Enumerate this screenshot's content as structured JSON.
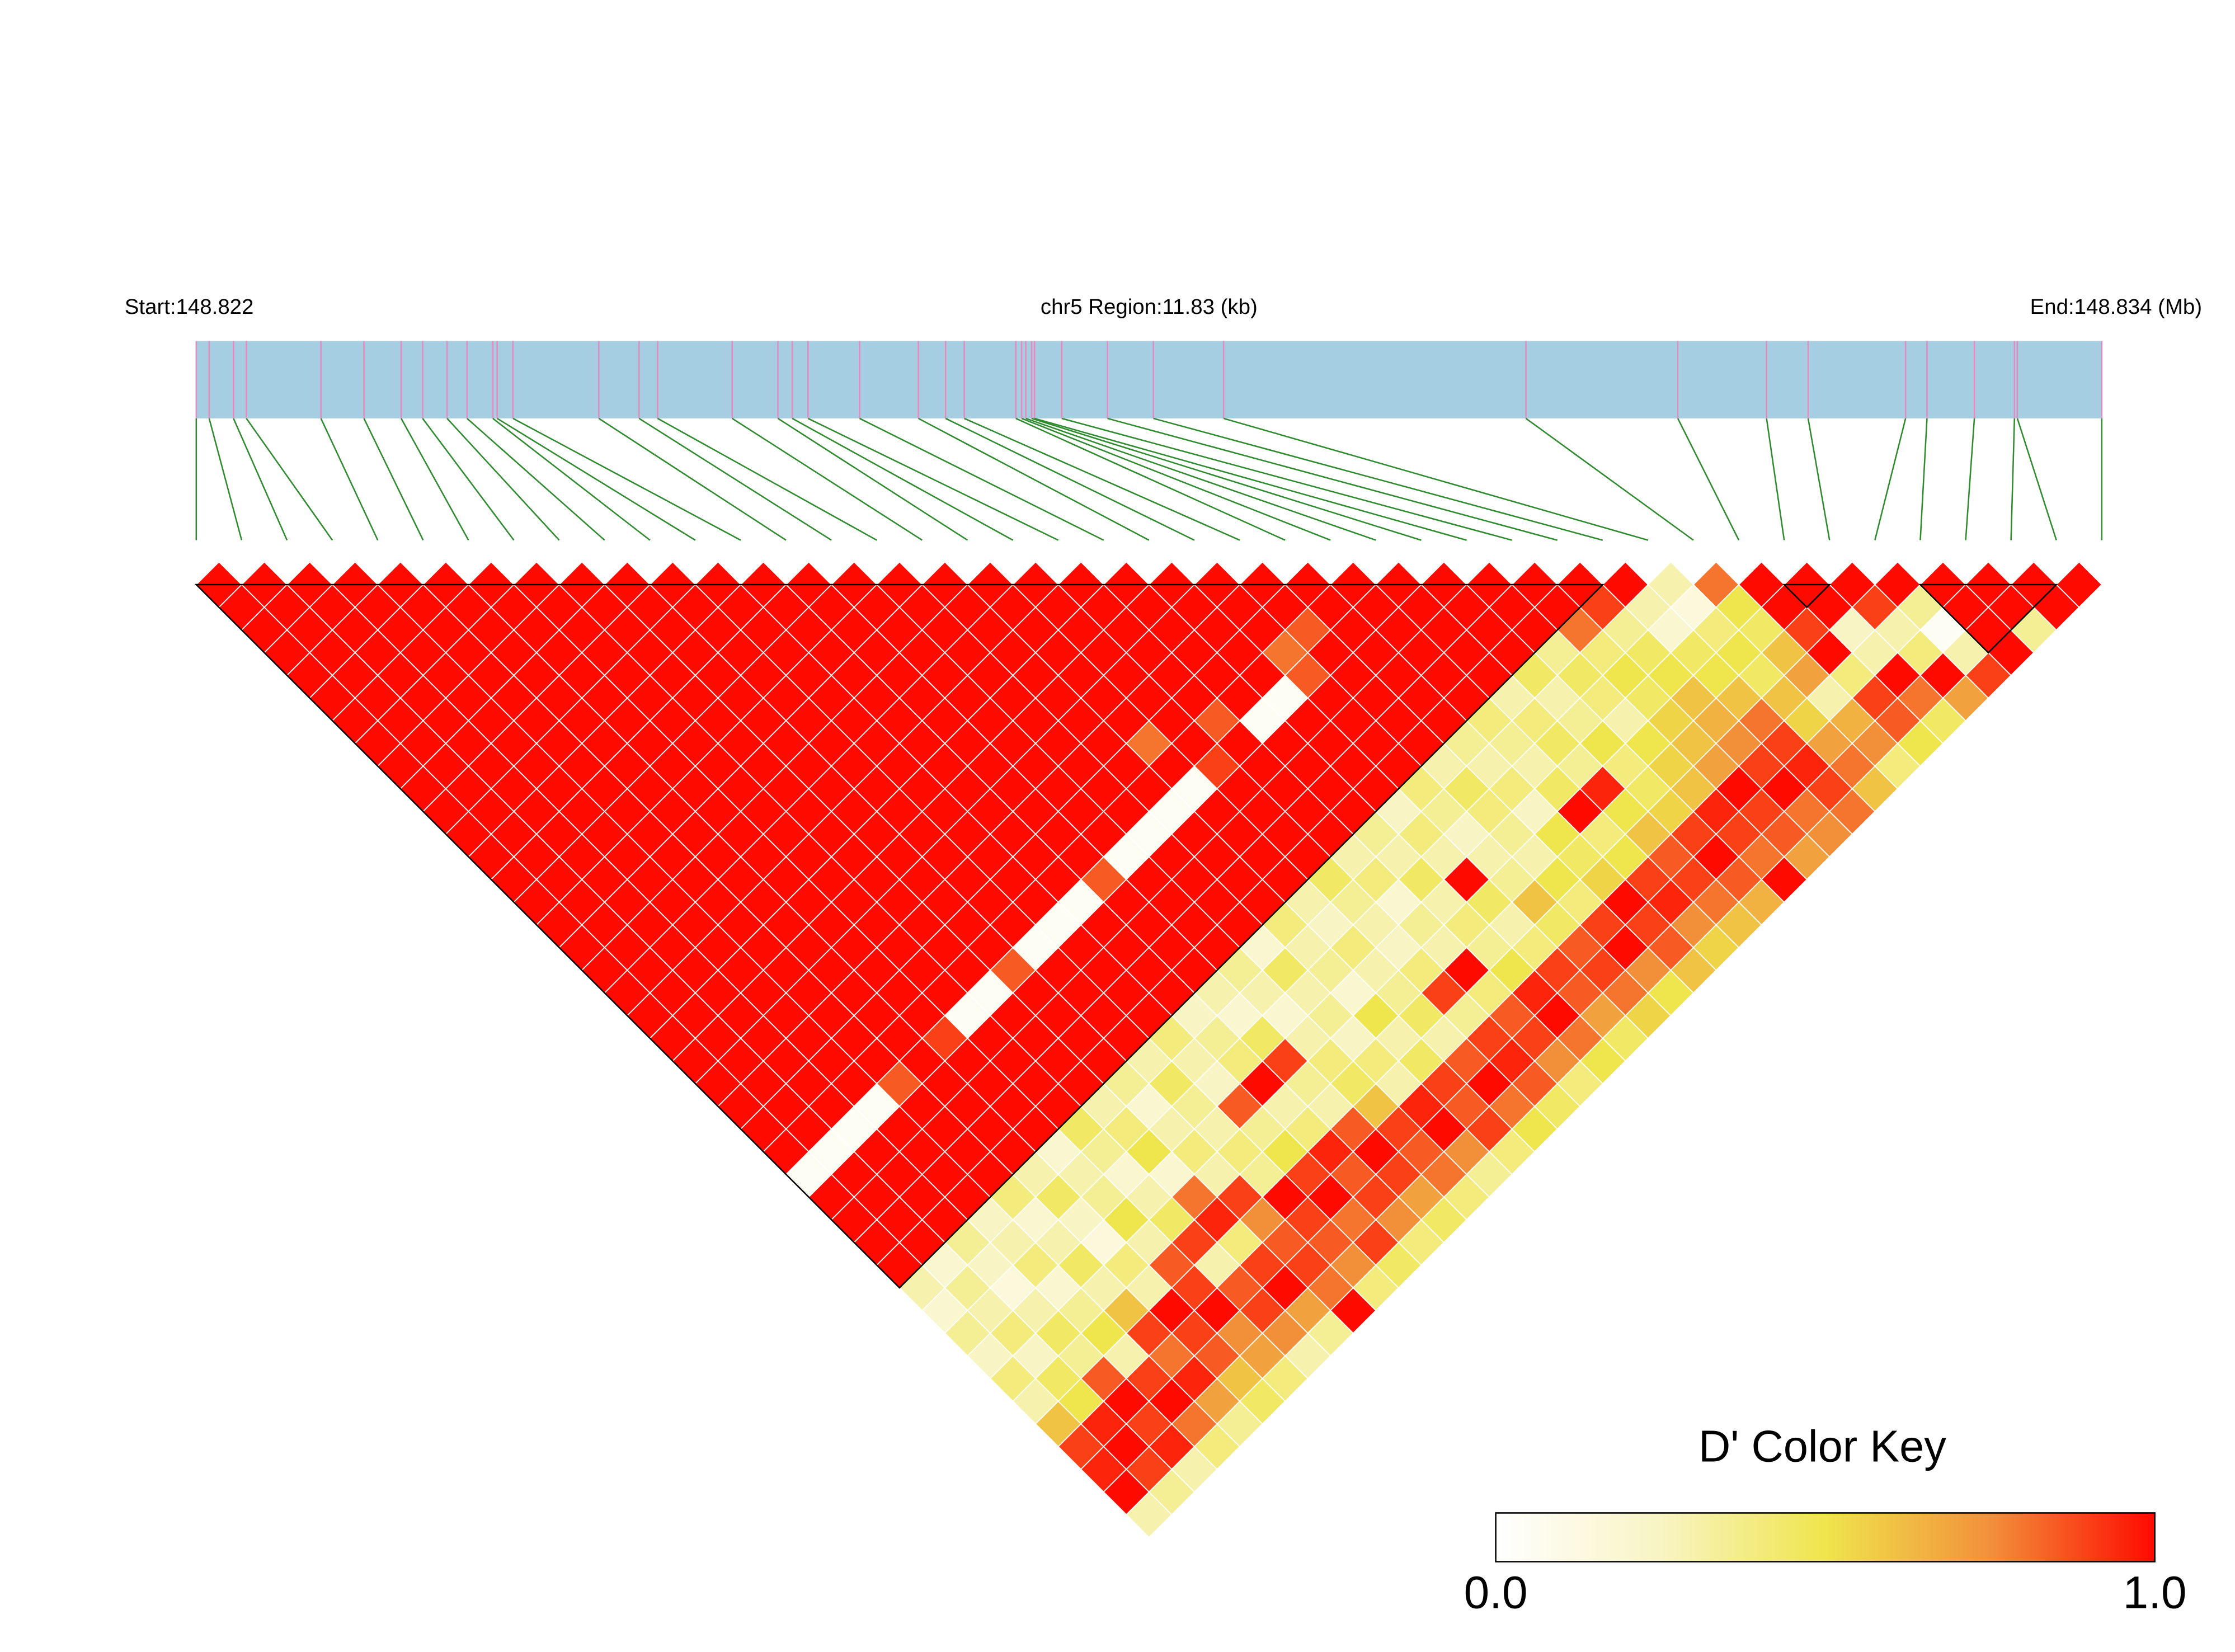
{
  "chart_data": {
    "type": "ld_heatmap",
    "start_label": "Start:148.822",
    "region_label": "chr5 Region:11.83 (kb)",
    "end_label": "End:148.834 (Mb)",
    "xlim": [
      0,
      11.83
    ],
    "snp_positions": [
      0,
      0.08,
      0.231,
      0.311,
      0.774,
      1.041,
      1.272,
      1.405,
      1.557,
      1.681,
      1.841,
      1.868,
      1.966,
      2.499,
      2.749,
      2.864,
      3.327,
      3.611,
      3.7,
      3.798,
      4.118,
      4.483,
      4.652,
      4.768,
      5.088,
      5.124,
      5.15,
      5.186,
      5.204,
      5.373,
      5.657,
      5.942,
      6.378,
      8.255,
      9.198,
      9.749,
      10.007,
      10.612,
      10.745,
      11.039,
      11.288,
      11.306,
      11.83
    ],
    "dprime": [
      [
        1,
        1,
        1,
        1,
        1,
        1,
        1,
        1,
        1,
        1,
        1,
        1,
        1,
        1,
        1,
        1,
        1,
        1,
        1,
        1,
        1,
        1,
        1,
        1,
        1,
        1,
        0.05,
        1,
        1,
        1,
        1,
        0.3,
        0.2,
        0.35,
        0.25,
        0.4,
        0.3,
        0.6,
        0.9,
        0.95,
        1,
        0.3
      ],
      [
        1,
        1,
        1,
        1,
        1,
        1,
        1,
        1,
        1,
        1,
        1,
        1,
        1,
        1,
        1,
        1,
        1,
        1,
        1,
        1,
        1,
        1,
        1,
        1,
        1,
        0.05,
        1,
        1,
        1,
        1,
        0.2,
        0.35,
        0.3,
        0.4,
        0.25,
        0.45,
        0.5,
        0.95,
        1,
        0.9,
        0.35
      ],
      [
        1,
        1,
        1,
        1,
        1,
        1,
        1,
        1,
        1,
        1,
        1,
        1,
        1,
        1,
        1,
        1,
        1,
        1,
        1,
        1,
        1,
        1,
        1,
        1,
        0.05,
        1,
        1,
        1,
        1,
        0.35,
        0.25,
        0.15,
        0.3,
        0.45,
        0.35,
        0.85,
        1,
        0.9,
        0.95,
        0.3
      ],
      [
        1,
        1,
        1,
        1,
        1,
        1,
        1,
        1,
        1,
        1,
        1,
        1,
        1,
        1,
        1,
        1,
        1,
        1,
        1,
        1,
        1,
        1,
        1,
        0.05,
        1,
        1,
        1,
        1,
        0.25,
        0.3,
        0.4,
        0.2,
        0.35,
        0.5,
        0.3,
        0.9,
        1,
        0.8,
        0.4
      ],
      [
        1,
        1,
        1,
        1,
        1,
        1,
        1,
        1,
        1,
        1,
        1,
        1,
        1,
        1,
        1,
        1,
        1,
        1,
        1,
        1,
        1,
        1,
        0.85,
        1,
        1,
        1,
        1,
        0.4,
        0.2,
        0.3,
        0.45,
        0.3,
        0.6,
        0.9,
        0.8,
        0.95,
        0.7,
        0.35
      ],
      [
        1,
        1,
        1,
        1,
        1,
        1,
        1,
        1,
        1,
        1,
        1,
        1,
        1,
        1,
        1,
        1,
        1,
        1,
        1,
        1,
        1,
        1,
        1,
        1,
        1,
        1,
        0.3,
        0.45,
        0.25,
        0.15,
        0.4,
        0.3,
        1,
        0.9,
        0.85,
        0.6,
        0.45
      ],
      [
        1,
        1,
        1,
        1,
        1,
        1,
        1,
        1,
        1,
        1,
        1,
        1,
        1,
        1,
        1,
        1,
        1,
        1,
        1,
        1,
        0.9,
        1,
        1,
        1,
        1,
        0.2,
        0.3,
        0.35,
        0.5,
        0.3,
        0.85,
        0.9,
        1,
        0.75,
        0.7,
        0.4
      ],
      [
        1,
        1,
        1,
        1,
        1,
        1,
        1,
        1,
        1,
        1,
        1,
        1,
        1,
        1,
        1,
        1,
        1,
        1,
        1,
        0.05,
        1,
        1,
        1,
        1,
        0.45,
        0.35,
        0.2,
        0.3,
        0.45,
        0.9,
        0.3,
        0.85,
        0.9,
        0.75,
        0.3
      ],
      [
        1,
        1,
        1,
        1,
        1,
        1,
        1,
        1,
        1,
        1,
        1,
        1,
        1,
        1,
        1,
        1,
        1,
        1,
        0.05,
        1,
        1,
        1,
        1,
        0.3,
        0.4,
        0.5,
        0.2,
        0.8,
        0.95,
        0.4,
        0.9,
        1,
        0.7,
        0.35
      ],
      [
        1,
        1,
        1,
        1,
        1,
        1,
        1,
        1,
        1,
        1,
        1,
        1,
        1,
        1,
        1,
        1,
        1,
        0.85,
        1,
        1,
        1,
        1,
        0.35,
        0.2,
        0.3,
        0.4,
        0.3,
        0.9,
        0.75,
        0.85,
        0.9,
        0.8,
        1
      ],
      [
        1,
        1,
        1,
        1,
        1,
        1,
        1,
        1,
        1,
        1,
        1,
        1,
        1,
        1,
        1,
        1,
        0.05,
        1,
        1,
        1,
        1,
        0.3,
        0.45,
        0.35,
        0.3,
        0.4,
        0.35,
        1,
        0.9,
        0.85,
        0.75,
        0.4
      ],
      [
        1,
        1,
        1,
        1,
        1,
        1,
        1,
        1,
        1,
        1,
        1,
        1,
        1,
        1,
        1,
        0.05,
        1,
        1,
        1,
        1,
        0.4,
        0.3,
        0.25,
        0.85,
        0.35,
        0.5,
        0.9,
        1,
        0.8,
        0.9,
        0.45
      ],
      [
        1,
        1,
        1,
        1,
        1,
        1,
        1,
        1,
        1,
        1,
        1,
        1,
        1,
        1,
        0.05,
        1,
        1,
        1,
        1,
        0.25,
        0.35,
        0.4,
        1,
        0.3,
        0.4,
        0.95,
        0.85,
        0.9,
        0.75,
        0.4
      ],
      [
        1,
        1,
        1,
        1,
        1,
        1,
        1,
        1,
        1,
        1,
        1,
        1,
        1,
        0.85,
        1,
        1,
        1,
        1,
        0.3,
        0.2,
        0.45,
        0.9,
        0.35,
        0.3,
        0.85,
        1,
        0.9,
        0.7,
        0.45
      ],
      [
        1,
        1,
        1,
        1,
        1,
        1,
        1,
        1,
        1,
        1,
        1,
        1,
        0.05,
        1,
        1,
        1,
        1,
        0.35,
        0.3,
        0.2,
        0.3,
        0.4,
        0.45,
        0.6,
        0.9,
        0.85,
        0.8,
        0.4
      ],
      [
        1,
        1,
        1,
        1,
        1,
        1,
        1,
        1,
        1,
        1,
        1,
        0.05,
        1,
        1,
        1,
        1,
        0.2,
        0.45,
        0.3,
        0.35,
        0.25,
        0.4,
        0.3,
        0.95,
        1,
        0.75,
        0.35
      ],
      [
        1,
        1,
        1,
        1,
        1,
        1,
        1,
        1,
        1,
        1,
        0.05,
        1,
        1,
        1,
        1,
        0.4,
        0.3,
        0.35,
        0.2,
        0.5,
        0.3,
        0.45,
        0.9,
        0.85,
        0.9,
        0.4
      ],
      [
        1,
        1,
        1,
        1,
        1,
        1,
        1,
        0.8,
        1,
        0.05,
        1,
        1,
        1,
        1,
        0.3,
        0.25,
        0.4,
        0.3,
        0.35,
        0.45,
        0.3,
        0.85,
        1,
        0.8,
        0.5
      ],
      [
        1,
        1,
        1,
        1,
        1,
        1,
        1,
        1,
        0.9,
        1,
        1,
        1,
        1,
        0.45,
        0.35,
        0.3,
        0.25,
        0.4,
        0.9,
        0.35,
        0.9,
        0.95,
        0.85,
        0.45
      ],
      [
        1,
        1,
        1,
        1,
        1,
        1,
        0.85,
        1,
        1,
        1,
        1,
        1,
        0.3,
        0.4,
        0.2,
        0.35,
        0.3,
        1,
        0.4,
        0.85,
        0.9,
        0.75,
        0.4
      ],
      [
        1,
        1,
        1,
        1,
        1,
        1,
        0.05,
        1,
        1,
        1,
        1,
        0.35,
        0.3,
        0.45,
        0.3,
        0.4,
        0.35,
        0.5,
        0.95,
        1,
        0.8,
        0.5
      ],
      [
        1,
        1,
        1,
        1,
        1,
        0.05,
        1,
        1,
        1,
        1,
        0.25,
        0.4,
        0.3,
        1,
        0.45,
        0.3,
        0.4,
        0.9,
        0.85,
        0.7,
        0.45
      ],
      [
        1,
        1,
        1,
        0.8,
        0.85,
        1,
        1,
        1,
        1,
        0.4,
        0.35,
        0.25,
        0.3,
        0.35,
        0.6,
        0.45,
        0.85,
        0.9,
        0.8,
        0.55
      ],
      [
        1,
        1,
        0.85,
        1,
        1,
        1,
        1,
        1,
        0.3,
        0.45,
        0.4,
        0.35,
        0.3,
        0.5,
        0.4,
        0.9,
        1,
        0.75,
        0.5
      ],
      [
        1,
        1,
        1,
        1,
        1,
        1,
        1,
        0.35,
        0.3,
        0.4,
        0.25,
        0.5,
        0.45,
        0.55,
        1,
        0.9,
        0.85,
        0.6
      ],
      [
        1,
        1,
        1,
        1,
        1,
        1,
        0.4,
        0.35,
        0.3,
        0.45,
        1,
        0.4,
        0.5,
        0.9,
        0.95,
        0.75,
        0.55
      ],
      [
        1,
        1,
        1,
        1,
        1,
        0.3,
        0.4,
        0.45,
        0.35,
        0.95,
        0.5,
        0.6,
        0.85,
        0.9,
        0.8,
        0.6
      ],
      [
        1,
        1,
        1,
        1,
        0.45,
        0.3,
        0.35,
        0.5,
        0.4,
        0.45,
        0.55,
        0.9,
        1,
        0.85,
        0.65
      ],
      [
        1,
        1,
        1,
        0.35,
        0.45,
        0.4,
        0.3,
        0.5,
        0.55,
        0.6,
        0.95,
        0.9,
        0.8,
        1
      ],
      [
        1,
        1,
        0.8,
        0.4,
        0.5,
        0.45,
        0.55,
        0.6,
        0.7,
        1,
        0.9,
        0.85,
        0.7
      ],
      [
        1,
        0.9,
        0.35,
        0.45,
        0.5,
        0.6,
        0.65,
        0.75,
        0.9,
        1,
        0.8,
        0.75
      ],
      [
        1,
        0.3,
        0.2,
        0.45,
        0.5,
        0.6,
        0.8,
        0.9,
        0.95,
        0.9,
        0.8
      ],
      [
        0.3,
        0.15,
        0.4,
        0.5,
        0.45,
        0.6,
        0.55,
        0.7,
        0.8,
        0.6
      ],
      [
        0.8,
        0.5,
        0.45,
        0.6,
        0.7,
        0.3,
        0.65,
        0.75,
        0.4
      ],
      [
        1,
        1,
        0.9,
        1,
        0.4,
        0.9,
        0.85,
        0.5
      ],
      [
        1,
        1,
        0.25,
        0.3,
        1,
        0.8,
        0.45
      ],
      [
        1,
        0.9,
        0.3,
        0.4,
        1,
        0.7
      ],
      [
        1,
        0.35,
        0.05,
        0.3,
        0.9
      ],
      [
        1,
        1,
        1,
        1
      ],
      [
        1,
        1,
        0.35
      ],
      [
        1,
        1
      ],
      [
        1
      ]
    ],
    "ld_blocks": [
      [
        0,
        31
      ],
      [
        35,
        36
      ],
      [
        38,
        41
      ]
    ],
    "bar_color": "#a6cee3",
    "snp_tick_color": "#e68ac0",
    "connector_color": "#2e8b2e",
    "cell_border": "#ffffff",
    "block_outline": "#000000",
    "key_title": "D' Color Key",
    "key_ticks": [
      {
        "value": 0,
        "label": "0.0"
      },
      {
        "value": 1,
        "label": "1.0"
      }
    ],
    "colors": [
      "#ffffff",
      "#f8f4c4",
      "#efe54c",
      "#f2903a",
      "#ff0a00"
    ]
  }
}
